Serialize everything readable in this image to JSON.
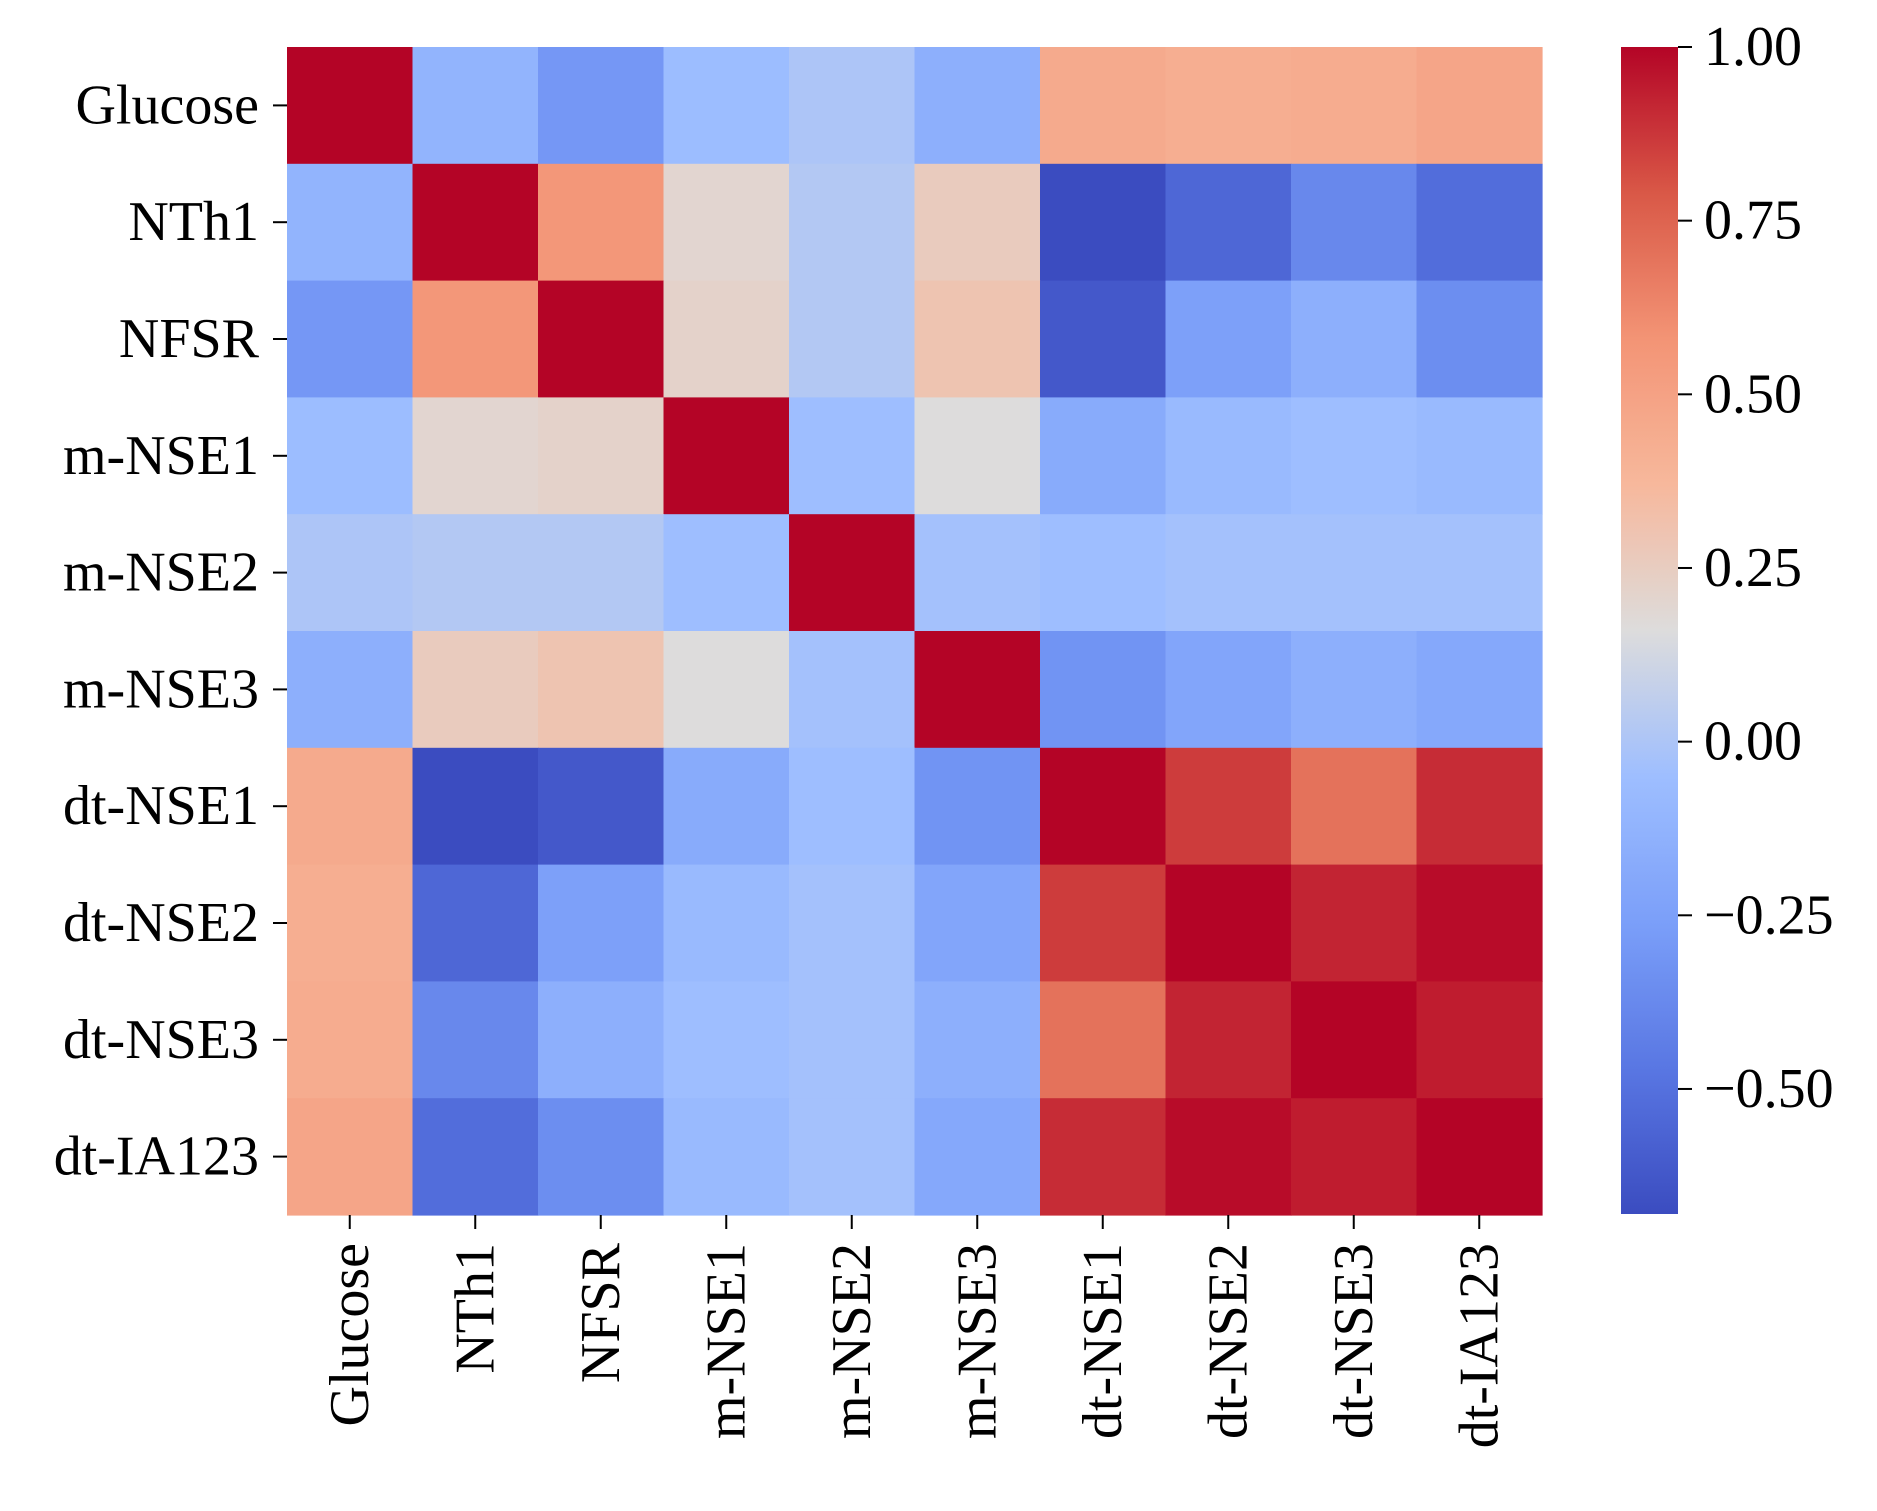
{
  "chart_data": {
    "type": "heatmap",
    "title": "",
    "xlabel": "",
    "ylabel": "",
    "row_labels": [
      "Glucose",
      "NTh1",
      "NFSR",
      "m-NSE1",
      "m-NSE2",
      "m-NSE3",
      "dt-NSE1",
      "dt-NSE2",
      "dt-NSE3",
      "dt-IA123"
    ],
    "col_labels": [
      "Glucose",
      "NTh1",
      "NFSR",
      "m-NSE1",
      "m-NSE2",
      "m-NSE3",
      "dt-NSE1",
      "dt-NSE2",
      "dt-NSE3",
      "dt-IA123"
    ],
    "values": [
      [
        1.0,
        -0.12,
        -0.3,
        -0.06,
        0.0,
        -0.15,
        0.45,
        0.43,
        0.44,
        0.48
      ],
      [
        -0.12,
        1.0,
        0.56,
        0.2,
        0.02,
        0.26,
        -0.68,
        -0.55,
        -0.38,
        -0.52
      ],
      [
        -0.3,
        0.56,
        1.0,
        0.22,
        0.02,
        0.3,
        -0.62,
        -0.25,
        -0.15,
        -0.35
      ],
      [
        -0.06,
        0.2,
        0.22,
        1.0,
        -0.05,
        0.16,
        -0.18,
        -0.08,
        -0.05,
        -0.08
      ],
      [
        0.0,
        0.02,
        0.02,
        -0.05,
        1.0,
        -0.03,
        -0.05,
        -0.03,
        -0.03,
        -0.03
      ],
      [
        -0.15,
        0.26,
        0.3,
        0.16,
        -0.03,
        1.0,
        -0.32,
        -0.22,
        -0.15,
        -0.2
      ],
      [
        0.45,
        -0.68,
        -0.62,
        -0.18,
        -0.05,
        -0.32,
        1.0,
        0.86,
        0.7,
        0.9
      ],
      [
        0.43,
        -0.55,
        -0.25,
        -0.08,
        -0.03,
        -0.22,
        0.86,
        1.0,
        0.92,
        0.98
      ],
      [
        0.44,
        -0.38,
        -0.15,
        -0.05,
        -0.03,
        -0.15,
        0.7,
        0.92,
        1.0,
        0.94
      ],
      [
        0.48,
        -0.52,
        -0.35,
        -0.08,
        -0.03,
        -0.2,
        0.9,
        0.98,
        0.94,
        1.0
      ]
    ],
    "colormap": "coolwarm",
    "vmin": -0.68,
    "vmax": 1.0,
    "colorbar": {
      "ticks": [
        1.0,
        0.75,
        0.5,
        0.25,
        0.0,
        -0.25,
        -0.5
      ],
      "tick_labels": [
        "1.00",
        "0.75",
        "0.50",
        "0.25",
        "0.00",
        "−0.25",
        "−0.50"
      ]
    },
    "colors": {
      "low": "#3b4cc0",
      "mid": "#dddcdc",
      "high": "#b40426",
      "text": "#000000",
      "background": "#ffffff"
    }
  }
}
